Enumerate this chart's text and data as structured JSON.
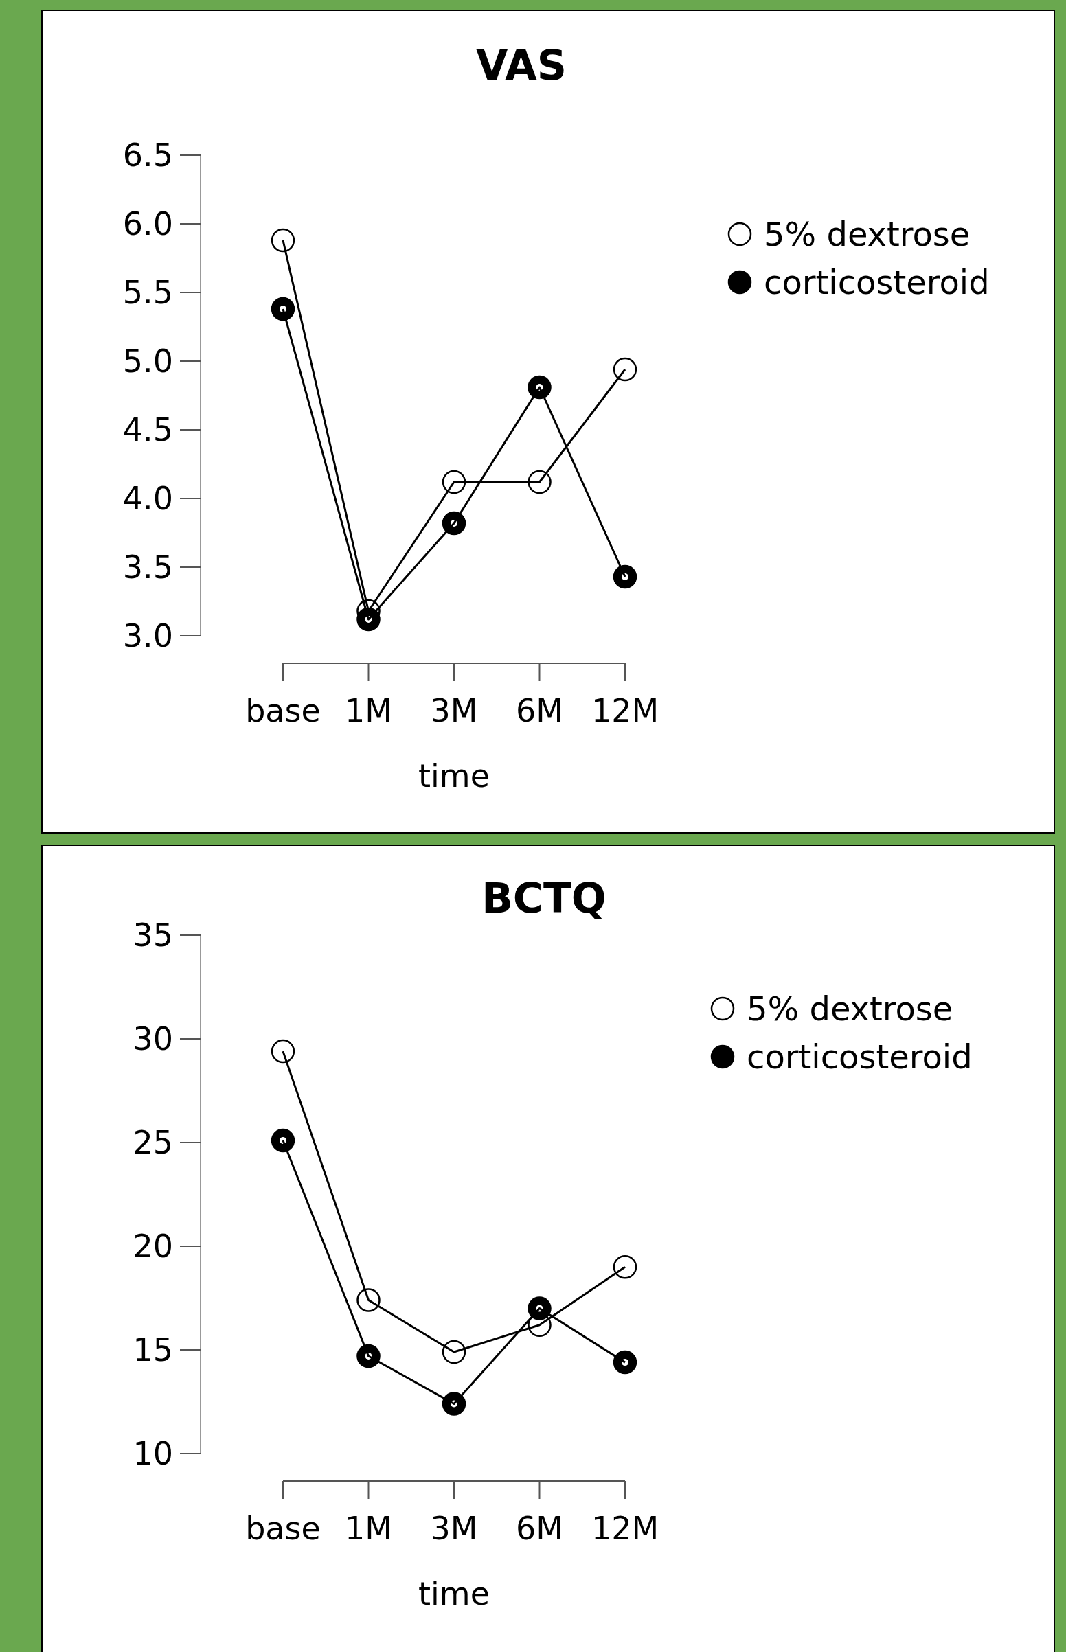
{
  "chart_data": [
    {
      "type": "line",
      "title": "VAS",
      "xlabel": "time",
      "categories": [
        "base",
        "1M",
        "3M",
        "6M",
        "12M"
      ],
      "ylim": [
        3.0,
        6.5
      ],
      "yticks": [
        {
          "value": 3.0,
          "label": "3.0"
        },
        {
          "value": 3.5,
          "label": "3.5"
        },
        {
          "value": 4.0,
          "label": "4.0"
        },
        {
          "value": 4.5,
          "label": "4.5"
        },
        {
          "value": 5.0,
          "label": "5.0"
        },
        {
          "value": 5.5,
          "label": "5.5"
        },
        {
          "value": 6.0,
          "label": "6.0"
        },
        {
          "value": 6.5,
          "label": "6.5"
        }
      ],
      "legend": "top right",
      "marker": "circle",
      "line_style": "solid",
      "series": [
        {
          "name": "5% dextrose",
          "color": "#ffffff",
          "values": [
            5.88,
            3.18,
            4.12,
            4.12,
            4.94
          ]
        },
        {
          "name": "corticosteroid",
          "color": "#000000",
          "values": [
            5.38,
            3.12,
            3.82,
            4.81,
            3.43
          ]
        }
      ]
    },
    {
      "type": "line",
      "title": "BCTQ",
      "xlabel": "time",
      "categories": [
        "base",
        "1M",
        "3M",
        "6M",
        "12M"
      ],
      "ylim": [
        10,
        35
      ],
      "yticks": [
        10,
        15,
        20,
        25,
        30,
        35
      ],
      "legend": "top right",
      "marker": "circle",
      "line_style": "solid",
      "series": [
        {
          "name": "5% dextrose",
          "color": "#ffffff",
          "values": [
            29.4,
            17.4,
            14.9,
            16.2,
            19.0
          ]
        },
        {
          "name": "corticosteroid",
          "color": "#000000",
          "values": [
            25.1,
            14.7,
            12.4,
            17.0,
            14.4
          ]
        }
      ]
    }
  ]
}
